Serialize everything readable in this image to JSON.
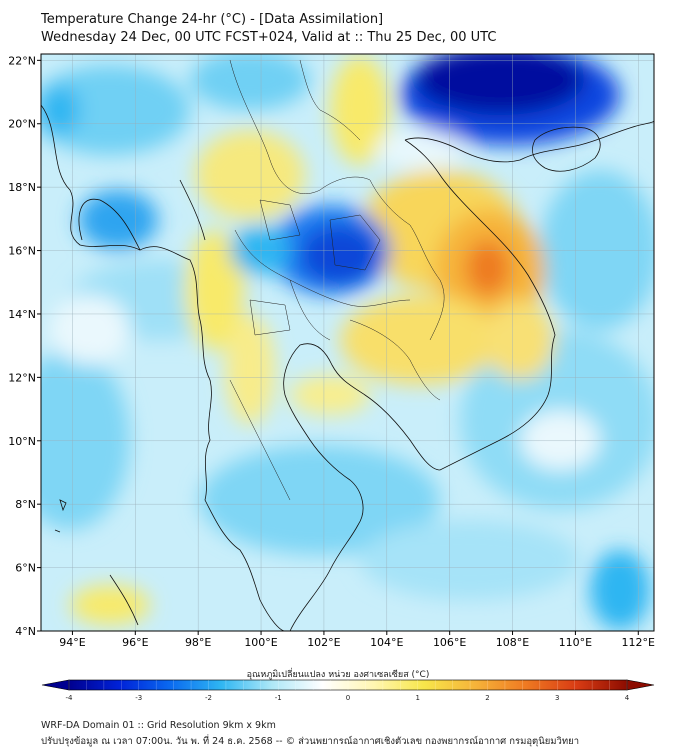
{
  "header": {
    "title": "Temperature Change 24-hr (°C) - [Data Assimilation]",
    "subtitle": "Wednesday 24 Dec, 00 UTC FCST+024, Valid at :: Thu 25 Dec, 00 UTC"
  },
  "map": {
    "lat_labels": [
      "22°N",
      "20°N",
      "18°N",
      "16°N",
      "14°N",
      "12°N",
      "10°N",
      "8°N",
      "6°N",
      "4°N"
    ],
    "lat_values": [
      22,
      20,
      18,
      16,
      14,
      12,
      10,
      8,
      6,
      4
    ],
    "lon_labels": [
      "94°E",
      "96°E",
      "98°E",
      "100°E",
      "102°E",
      "104°E",
      "106°E",
      "108°E",
      "110°E",
      "112°E"
    ],
    "lon_values": [
      94,
      96,
      98,
      100,
      102,
      104,
      106,
      108,
      110,
      112
    ],
    "extent": {
      "lon_min": 93,
      "lon_max": 112.5,
      "lat_min": 4,
      "lat_max": 22.2
    },
    "anomalies": [
      {
        "name": "cold-gulf-of-tonkin",
        "lon": 107.8,
        "lat": 21.4,
        "value": -4
      },
      {
        "name": "cold-ne-thailand",
        "lon": 102.4,
        "lat": 15.8,
        "value": -3.4
      },
      {
        "name": "cold-myanmar-coast",
        "lon": 95.6,
        "lat": 16.8,
        "value": -2
      },
      {
        "name": "warm-central-vietnam",
        "lon": 107.3,
        "lat": 15.3,
        "value": 2.6
      },
      {
        "name": "warm-laos",
        "lon": 105.5,
        "lat": 17.0,
        "value": 1.5
      },
      {
        "name": "warm-cambodia",
        "lon": 105.5,
        "lat": 12.8,
        "value": 1.2
      },
      {
        "name": "warm-north-myanmar",
        "lon": 101.5,
        "lat": 20.0,
        "value": 1.0
      },
      {
        "name": "warm-west-thailand",
        "lon": 99.0,
        "lat": 16.5,
        "value": 1.0
      },
      {
        "name": "warm-andaman",
        "lon": 96.0,
        "lat": 4.6,
        "value": 1.2
      }
    ]
  },
  "colorbar": {
    "label": "อุณหภูมิเปลี่ยนแปลง หน่วย องศาเซลเซียส (°C)",
    "ticks": [
      "-4",
      "-3",
      "-2",
      "-1",
      "0",
      "1",
      "2",
      "3",
      "4"
    ],
    "tick_values": [
      -4,
      -3,
      -2,
      -1,
      0,
      1,
      2,
      3,
      4
    ],
    "colors": [
      "#00008f",
      "#0022d8",
      "#0a6af0",
      "#2fb6f2",
      "#aee8f7",
      "#ffffff",
      "#fff6b2",
      "#f7e64a",
      "#f6b43a",
      "#ee7a22",
      "#d93c14",
      "#8c0c00"
    ]
  },
  "footer": {
    "line1": "WRF-DA Domain 01 :: Grid Resolution 9km x 9km",
    "line2": "ปรับปรุงข้อมูล ณ เวลา 07:00น. วัน พ. ที่ 24 ธ.ค. 2568 -- © ส่วนพยากรณ์อากาศเชิงตัวเลข กองพยากรณ์อากาศ กรมอุตุนิยมวิทยา"
  }
}
